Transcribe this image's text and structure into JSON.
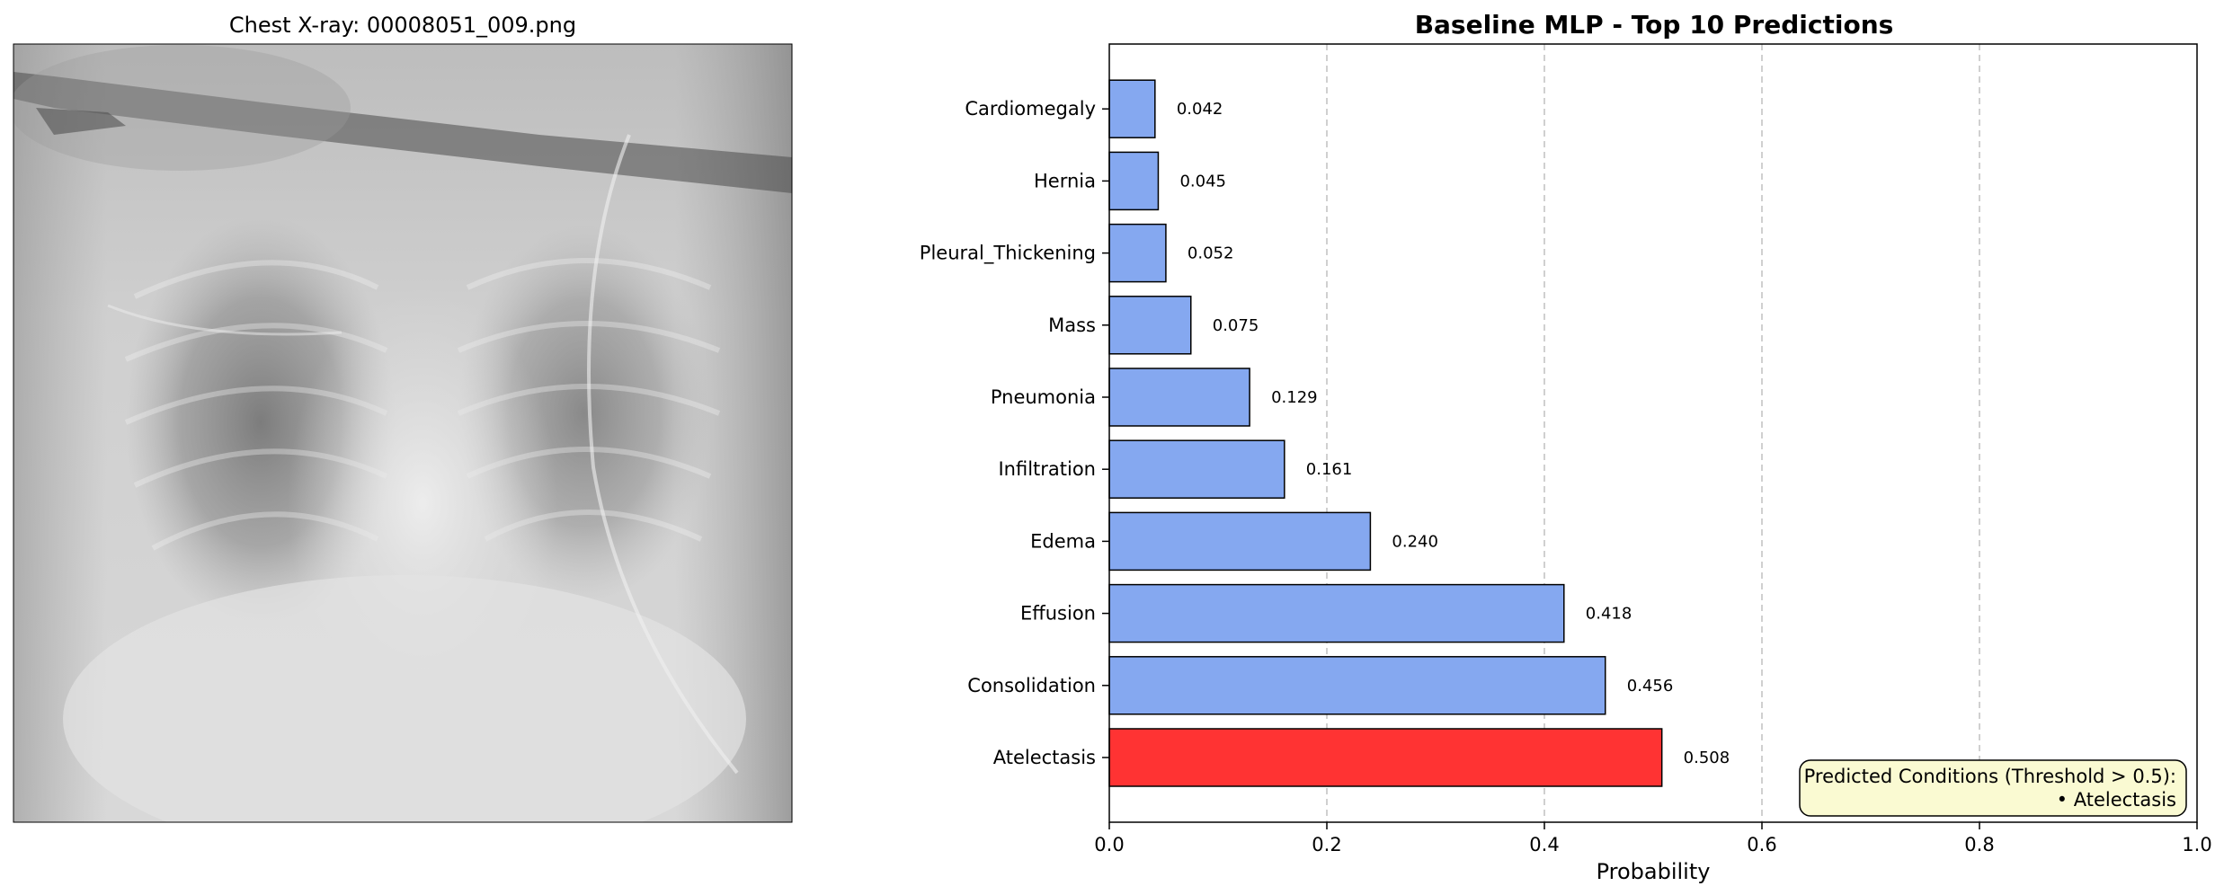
{
  "image_panel": {
    "title": "Chest X-ray: 00008051_009.png"
  },
  "annotation": {
    "line1": "Predicted Conditions (Threshold > 0.5):",
    "line2": "• Atelectasis"
  },
  "chart_data": {
    "type": "bar",
    "orientation": "horizontal",
    "title": "Baseline MLP - Top 10 Predictions",
    "xlabel": "Probability",
    "ylabel": "",
    "xlim": [
      0,
      1
    ],
    "xticks": [
      "0.0",
      "0.2",
      "0.4",
      "0.6",
      "0.8",
      "1.0"
    ],
    "grid": "x-dashed",
    "threshold": 0.5,
    "colors": {
      "below_threshold": "#85a8f0",
      "above_threshold": "#ff3333",
      "edge": "#000000"
    },
    "categories": [
      "Atelectasis",
      "Consolidation",
      "Effusion",
      "Edema",
      "Infiltration",
      "Pneumonia",
      "Mass",
      "Pleural_Thickening",
      "Hernia",
      "Cardiomegaly"
    ],
    "values": [
      0.508,
      0.456,
      0.418,
      0.24,
      0.161,
      0.129,
      0.075,
      0.052,
      0.045,
      0.042
    ],
    "value_labels": [
      "0.508",
      "0.456",
      "0.418",
      "0.240",
      "0.161",
      "0.129",
      "0.075",
      "0.052",
      "0.045",
      "0.042"
    ]
  }
}
